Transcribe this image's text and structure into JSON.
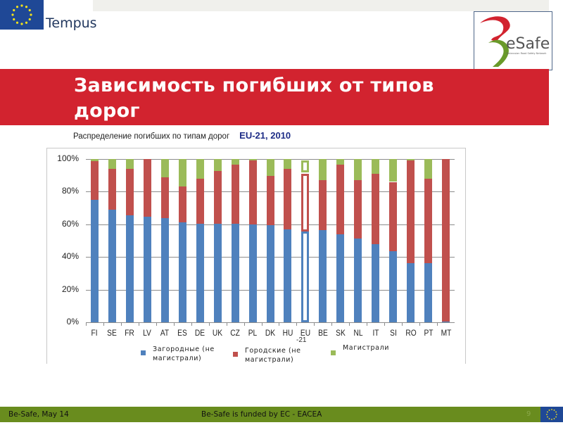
{
  "header": {
    "left_logo_label": "Tempus",
    "right_logo_label": "eSafe",
    "right_logo_tagline": "Belarusian Road Safety Network"
  },
  "slide": {
    "title_line1": "Зависимость погибших от типов",
    "title_line2": "дорог",
    "subtitle": "Распределение погибших по типам дорог",
    "subtitle_highlight": "EU-21, 2010"
  },
  "colors": {
    "title_band": "#d2232f",
    "footer": "#698c1e",
    "rural": "#4f81bd",
    "urban": "#c0504d",
    "motorway": "#9bbb59",
    "eu_flag": "#1f4896"
  },
  "chart_data": {
    "type": "bar",
    "stacked": true,
    "percent": true,
    "title": "Распределение погибших по типам дорог EU-21, 2010",
    "xlabel": "",
    "ylabel": "",
    "ylim": [
      0,
      100
    ],
    "yticks": [
      "0%",
      "20%",
      "40%",
      "60%",
      "80%",
      "100%"
    ],
    "grid": true,
    "legend_position": "bottom",
    "categories": [
      "FI",
      "SE",
      "FR",
      "LV",
      "AT",
      "ES",
      "DE",
      "UK",
      "CZ",
      "PL",
      "DK",
      "HU",
      "EU-21",
      "BE",
      "SK",
      "NL",
      "IT",
      "SI",
      "RO",
      "PT",
      "MT"
    ],
    "highlighted_category": "EU-21",
    "series": [
      {
        "name": "Загородные (не магистрали)",
        "color": "#4f81bd",
        "values": [
          75,
          69,
          65.5,
          64.5,
          64,
          61,
          60.5,
          60.5,
          60.5,
          60,
          59.5,
          57,
          55.5,
          56.5,
          54,
          51.5,
          48,
          43.5,
          36,
          36,
          0.5
        ]
      },
      {
        "name": "Городские (не магистрали)",
        "color": "#c0504d",
        "values": [
          23.5,
          25,
          28.5,
          35.5,
          25,
          22,
          27.5,
          32,
          36,
          39,
          30,
          37,
          36.5,
          30.5,
          42.5,
          35.5,
          43,
          42.5,
          63,
          52,
          99.5
        ]
      },
      {
        "name": "Магистрали",
        "color": "#9bbb59",
        "values": [
          1.5,
          6,
          6,
          0,
          11,
          17,
          12,
          7.5,
          3.5,
          1,
          10.5,
          6,
          8,
          13,
          3.5,
          13,
          9,
          14,
          1,
          12,
          0
        ]
      }
    ]
  },
  "legend": [
    {
      "label_line1": "Загородные (не",
      "label_line2": "магистрали)"
    },
    {
      "label_line1": "Городские (не",
      "label_line2": "магистрали)"
    },
    {
      "label_line1": "Магистрали",
      "label_line2": ""
    }
  ],
  "footer": {
    "left": "Be-Safe, May 14",
    "center": "Be-Safe is funded by EC - EACEA",
    "page": "9"
  }
}
